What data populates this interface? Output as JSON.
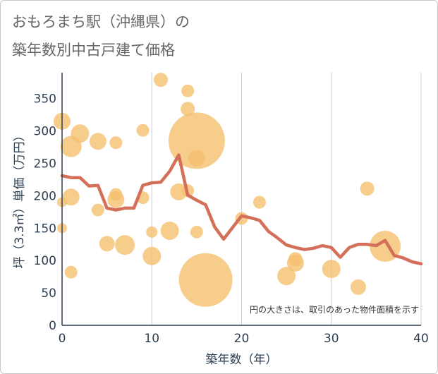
{
  "title_lines": [
    "おもろまち駅（沖縄県）の",
    "築年数別中古戸建て価格"
  ],
  "chart_data": {
    "type": "scatter",
    "title": "おもろまち駅（沖縄県）の築年数別中古戸建て価格",
    "xlabel": "築年数（年）",
    "ylabel": "坪（3.3㎡）単価（万円）",
    "xlim": [
      0,
      40
    ],
    "ylim": [
      0,
      390
    ],
    "x_ticks": [
      0,
      10,
      20,
      30,
      40
    ],
    "y_ticks": [
      0,
      50,
      100,
      150,
      200,
      250,
      300,
      350
    ],
    "grid": "vertical",
    "note": "円の大きさは、取引のあった物件面積を示す",
    "colors": {
      "bubble": "#f5c06f",
      "line": "#d4705a",
      "grid": "#c5d0da",
      "axis": "#2d3e50"
    },
    "series": [
      {
        "kind": "bubble",
        "points": [
          {
            "x": 0,
            "y": 315,
            "size": 12
          },
          {
            "x": 0,
            "y": 190,
            "size": 7
          },
          {
            "x": 0,
            "y": 150,
            "size": 7
          },
          {
            "x": 1,
            "y": 276,
            "size": 15
          },
          {
            "x": 1,
            "y": 198,
            "size": 12
          },
          {
            "x": 1,
            "y": 82,
            "size": 9
          },
          {
            "x": 2,
            "y": 296,
            "size": 13
          },
          {
            "x": 4,
            "y": 284,
            "size": 12
          },
          {
            "x": 4,
            "y": 178,
            "size": 9
          },
          {
            "x": 5,
            "y": 126,
            "size": 11
          },
          {
            "x": 6,
            "y": 282,
            "size": 9
          },
          {
            "x": 6,
            "y": 202,
            "size": 9
          },
          {
            "x": 6,
            "y": 194,
            "size": 12
          },
          {
            "x": 7,
            "y": 124,
            "size": 14
          },
          {
            "x": 9,
            "y": 301,
            "size": 9
          },
          {
            "x": 9,
            "y": 197,
            "size": 9
          },
          {
            "x": 10,
            "y": 144,
            "size": 8
          },
          {
            "x": 10,
            "y": 107,
            "size": 13
          },
          {
            "x": 11,
            "y": 379,
            "size": 10
          },
          {
            "x": 12,
            "y": 146,
            "size": 13
          },
          {
            "x": 13,
            "y": 206,
            "size": 12
          },
          {
            "x": 14,
            "y": 362,
            "size": 9
          },
          {
            "x": 14,
            "y": 334,
            "size": 10
          },
          {
            "x": 14,
            "y": 208,
            "size": 9
          },
          {
            "x": 15,
            "y": 285,
            "size": 40
          },
          {
            "x": 15,
            "y": 258,
            "size": 12
          },
          {
            "x": 15,
            "y": 144,
            "size": 9
          },
          {
            "x": 16,
            "y": 70,
            "size": 38
          },
          {
            "x": 20,
            "y": 165,
            "size": 9
          },
          {
            "x": 22,
            "y": 190,
            "size": 9
          },
          {
            "x": 25,
            "y": 76,
            "size": 13
          },
          {
            "x": 26,
            "y": 102,
            "size": 10
          },
          {
            "x": 26,
            "y": 96,
            "size": 12
          },
          {
            "x": 30,
            "y": 87,
            "size": 13
          },
          {
            "x": 33,
            "y": 59,
            "size": 11
          },
          {
            "x": 34,
            "y": 211,
            "size": 10
          },
          {
            "x": 36,
            "y": 122,
            "size": 22
          }
        ]
      },
      {
        "kind": "line",
        "x": [
          0,
          1,
          2,
          3,
          4,
          5,
          6,
          7,
          8,
          9,
          10,
          11,
          12,
          13,
          14,
          15,
          16,
          17,
          18,
          19,
          20,
          21,
          22,
          23,
          24,
          25,
          26,
          27,
          28,
          29,
          30,
          31,
          32,
          33,
          34,
          35,
          36,
          37,
          38,
          39,
          40
        ],
        "y": [
          231,
          228,
          228,
          215,
          216,
          181,
          178,
          181,
          181,
          216,
          220,
          221,
          238,
          263,
          201,
          193,
          186,
          152,
          133,
          151,
          169,
          166,
          162,
          145,
          135,
          124,
          120,
          117,
          119,
          123,
          120,
          105,
          120,
          125,
          125,
          123,
          131,
          108,
          104,
          98,
          95
        ]
      }
    ]
  }
}
